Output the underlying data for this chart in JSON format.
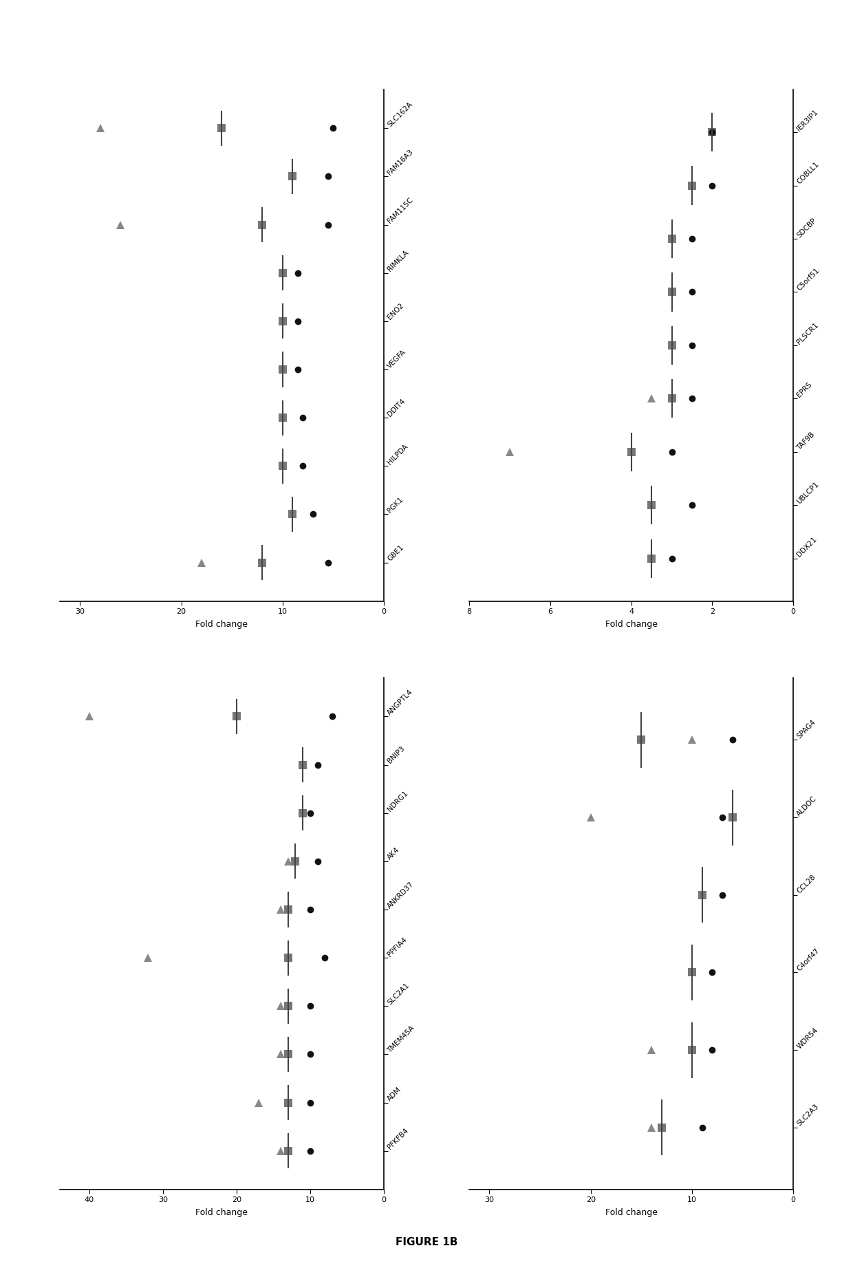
{
  "panels": [
    {
      "id": "top_left",
      "genes": [
        "GBE1",
        "PGK1",
        "HILPDA",
        "DDIT4",
        "VEGFA",
        "ENO2",
        "RIMKLA",
        "FAM115C",
        "FAM16A3",
        "SLC162A"
      ],
      "microarray": [
        5.5,
        7.0,
        8.0,
        8.0,
        8.5,
        8.5,
        8.5,
        5.5,
        5.5,
        5.0
      ],
      "pcr1": [
        12.0,
        9.0,
        10.0,
        10.0,
        10.0,
        10.0,
        10.0,
        12.0,
        9.0,
        16.0
      ],
      "pcr2": [
        18.0,
        9.0,
        10.0,
        10.0,
        10.0,
        10.0,
        10.0,
        26.0,
        9.0,
        28.0
      ],
      "xlim": [
        0,
        32
      ],
      "xticks": [
        0,
        10,
        20,
        30
      ]
    },
    {
      "id": "top_right",
      "genes": [
        "DDX21",
        "UBLCP1",
        "TAF9B",
        "EPRS",
        "PLSCR1",
        "C5orf51",
        "SDCBP",
        "COBLL1",
        "IER3IP1"
      ],
      "microarray": [
        3.0,
        2.5,
        3.0,
        2.5,
        2.5,
        2.5,
        2.5,
        2.0,
        2.0
      ],
      "pcr1": [
        3.5,
        3.5,
        4.0,
        3.0,
        3.0,
        3.0,
        3.0,
        2.5,
        2.0
      ],
      "pcr2": [
        3.5,
        3.5,
        7.0,
        3.5,
        3.0,
        3.0,
        3.0,
        2.5,
        2.0
      ],
      "xlim": [
        0,
        8
      ],
      "xticks": [
        0,
        2,
        4,
        6,
        8
      ]
    },
    {
      "id": "bottom_left",
      "genes": [
        "PFKFB4",
        "ADM",
        "TMEM45A",
        "SLC2A1",
        "PPFIA4",
        "ANKRD37",
        "AK4",
        "NDRG1",
        "BNIP3",
        "ANGPTL4"
      ],
      "microarray": [
        10.0,
        10.0,
        10.0,
        10.0,
        8.0,
        10.0,
        9.0,
        10.0,
        9.0,
        7.0
      ],
      "pcr1": [
        13.0,
        13.0,
        13.0,
        13.0,
        13.0,
        13.0,
        12.0,
        11.0,
        11.0,
        20.0
      ],
      "pcr2": [
        14.0,
        17.0,
        14.0,
        14.0,
        32.0,
        14.0,
        13.0,
        11.0,
        11.0,
        40.0
      ],
      "xlim": [
        0,
        44
      ],
      "xticks": [
        0,
        10,
        20,
        30,
        40
      ]
    },
    {
      "id": "bottom_right",
      "genes": [
        "SLC2A3",
        "WDR54",
        "C4orf47",
        "CCL28",
        "ALDOC",
        "SPAG4"
      ],
      "microarray": [
        9.0,
        8.0,
        8.0,
        7.0,
        7.0,
        6.0
      ],
      "pcr1": [
        13.0,
        10.0,
        10.0,
        9.0,
        6.0,
        15.0
      ],
      "pcr2": [
        14.0,
        14.0,
        10.0,
        9.0,
        20.0,
        10.0
      ],
      "xlim": [
        0,
        32
      ],
      "xticks": [
        0,
        10,
        20,
        30
      ]
    }
  ],
  "color_micro": "#111111",
  "color_pcr1": "#777777",
  "color_pcr2": "#888888",
  "figure_title": "FIGURE 1B",
  "xlabel": "Fold change"
}
